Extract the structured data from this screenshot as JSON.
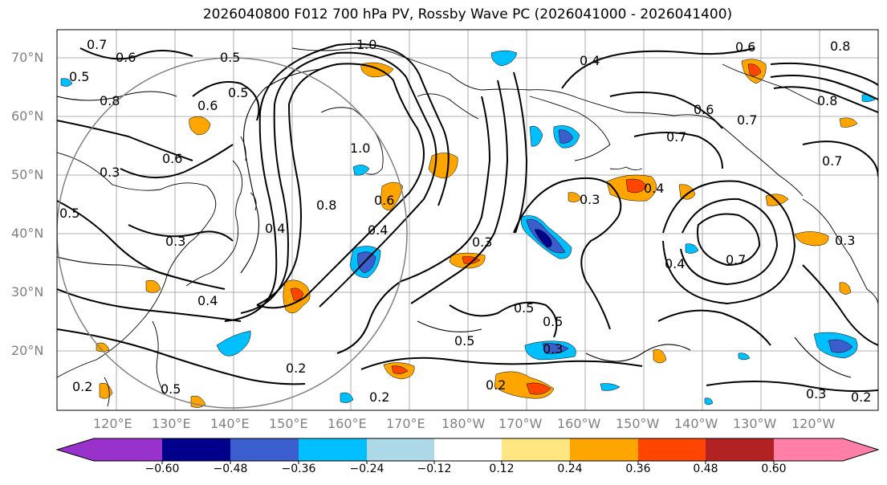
{
  "title": "2026040800 F012 700 hPa PV, Rossby Wave PC (2026041000 - 2026041400)",
  "map": {
    "projection": "cylindrical",
    "lat_labels": [
      "70°N",
      "60°N",
      "50°N",
      "40°N",
      "30°N",
      "20°N"
    ],
    "lon_labels": [
      "120°E",
      "130°E",
      "140°E",
      "150°E",
      "160°E",
      "170°E",
      "180°W",
      "170°W",
      "160°W",
      "150°W",
      "140°W",
      "130°W",
      "120°W"
    ],
    "contour_labels": [
      "0.7",
      "0.6",
      "0.5",
      "1.0",
      "0.4",
      "0.5",
      "0.8",
      "0.6",
      "0.5",
      "0.6",
      "0.3",
      "0.5",
      "0.3",
      "0.4",
      "0.8",
      "0.6",
      "1.0",
      "0.4",
      "0.3",
      "0.4",
      "0.5",
      "0.7",
      "0.6",
      "0.7",
      "0.4",
      "0.3",
      "0.7",
      "0.4",
      "0.5",
      "0.5",
      "0.3",
      "0.2",
      "0.2",
      "0.2",
      "0.2",
      "0.3",
      "0.2",
      "0.8",
      "0.8",
      "0.6",
      "0.7",
      "0.3",
      "0.5"
    ]
  },
  "colorbar": {
    "ticks": [
      "−0.60",
      "−0.48",
      "−0.36",
      "−0.24",
      "−0.12",
      "0.12",
      "0.24",
      "0.36",
      "0.48",
      "0.60"
    ],
    "colors": [
      "#9932cc",
      "#00008b",
      "#3a5fcd",
      "#00bfff",
      "#add8e6",
      "#ffffff",
      "#ffe680",
      "#ffa500",
      "#ff4500",
      "#b22222",
      "#ff7fa8"
    ]
  }
}
